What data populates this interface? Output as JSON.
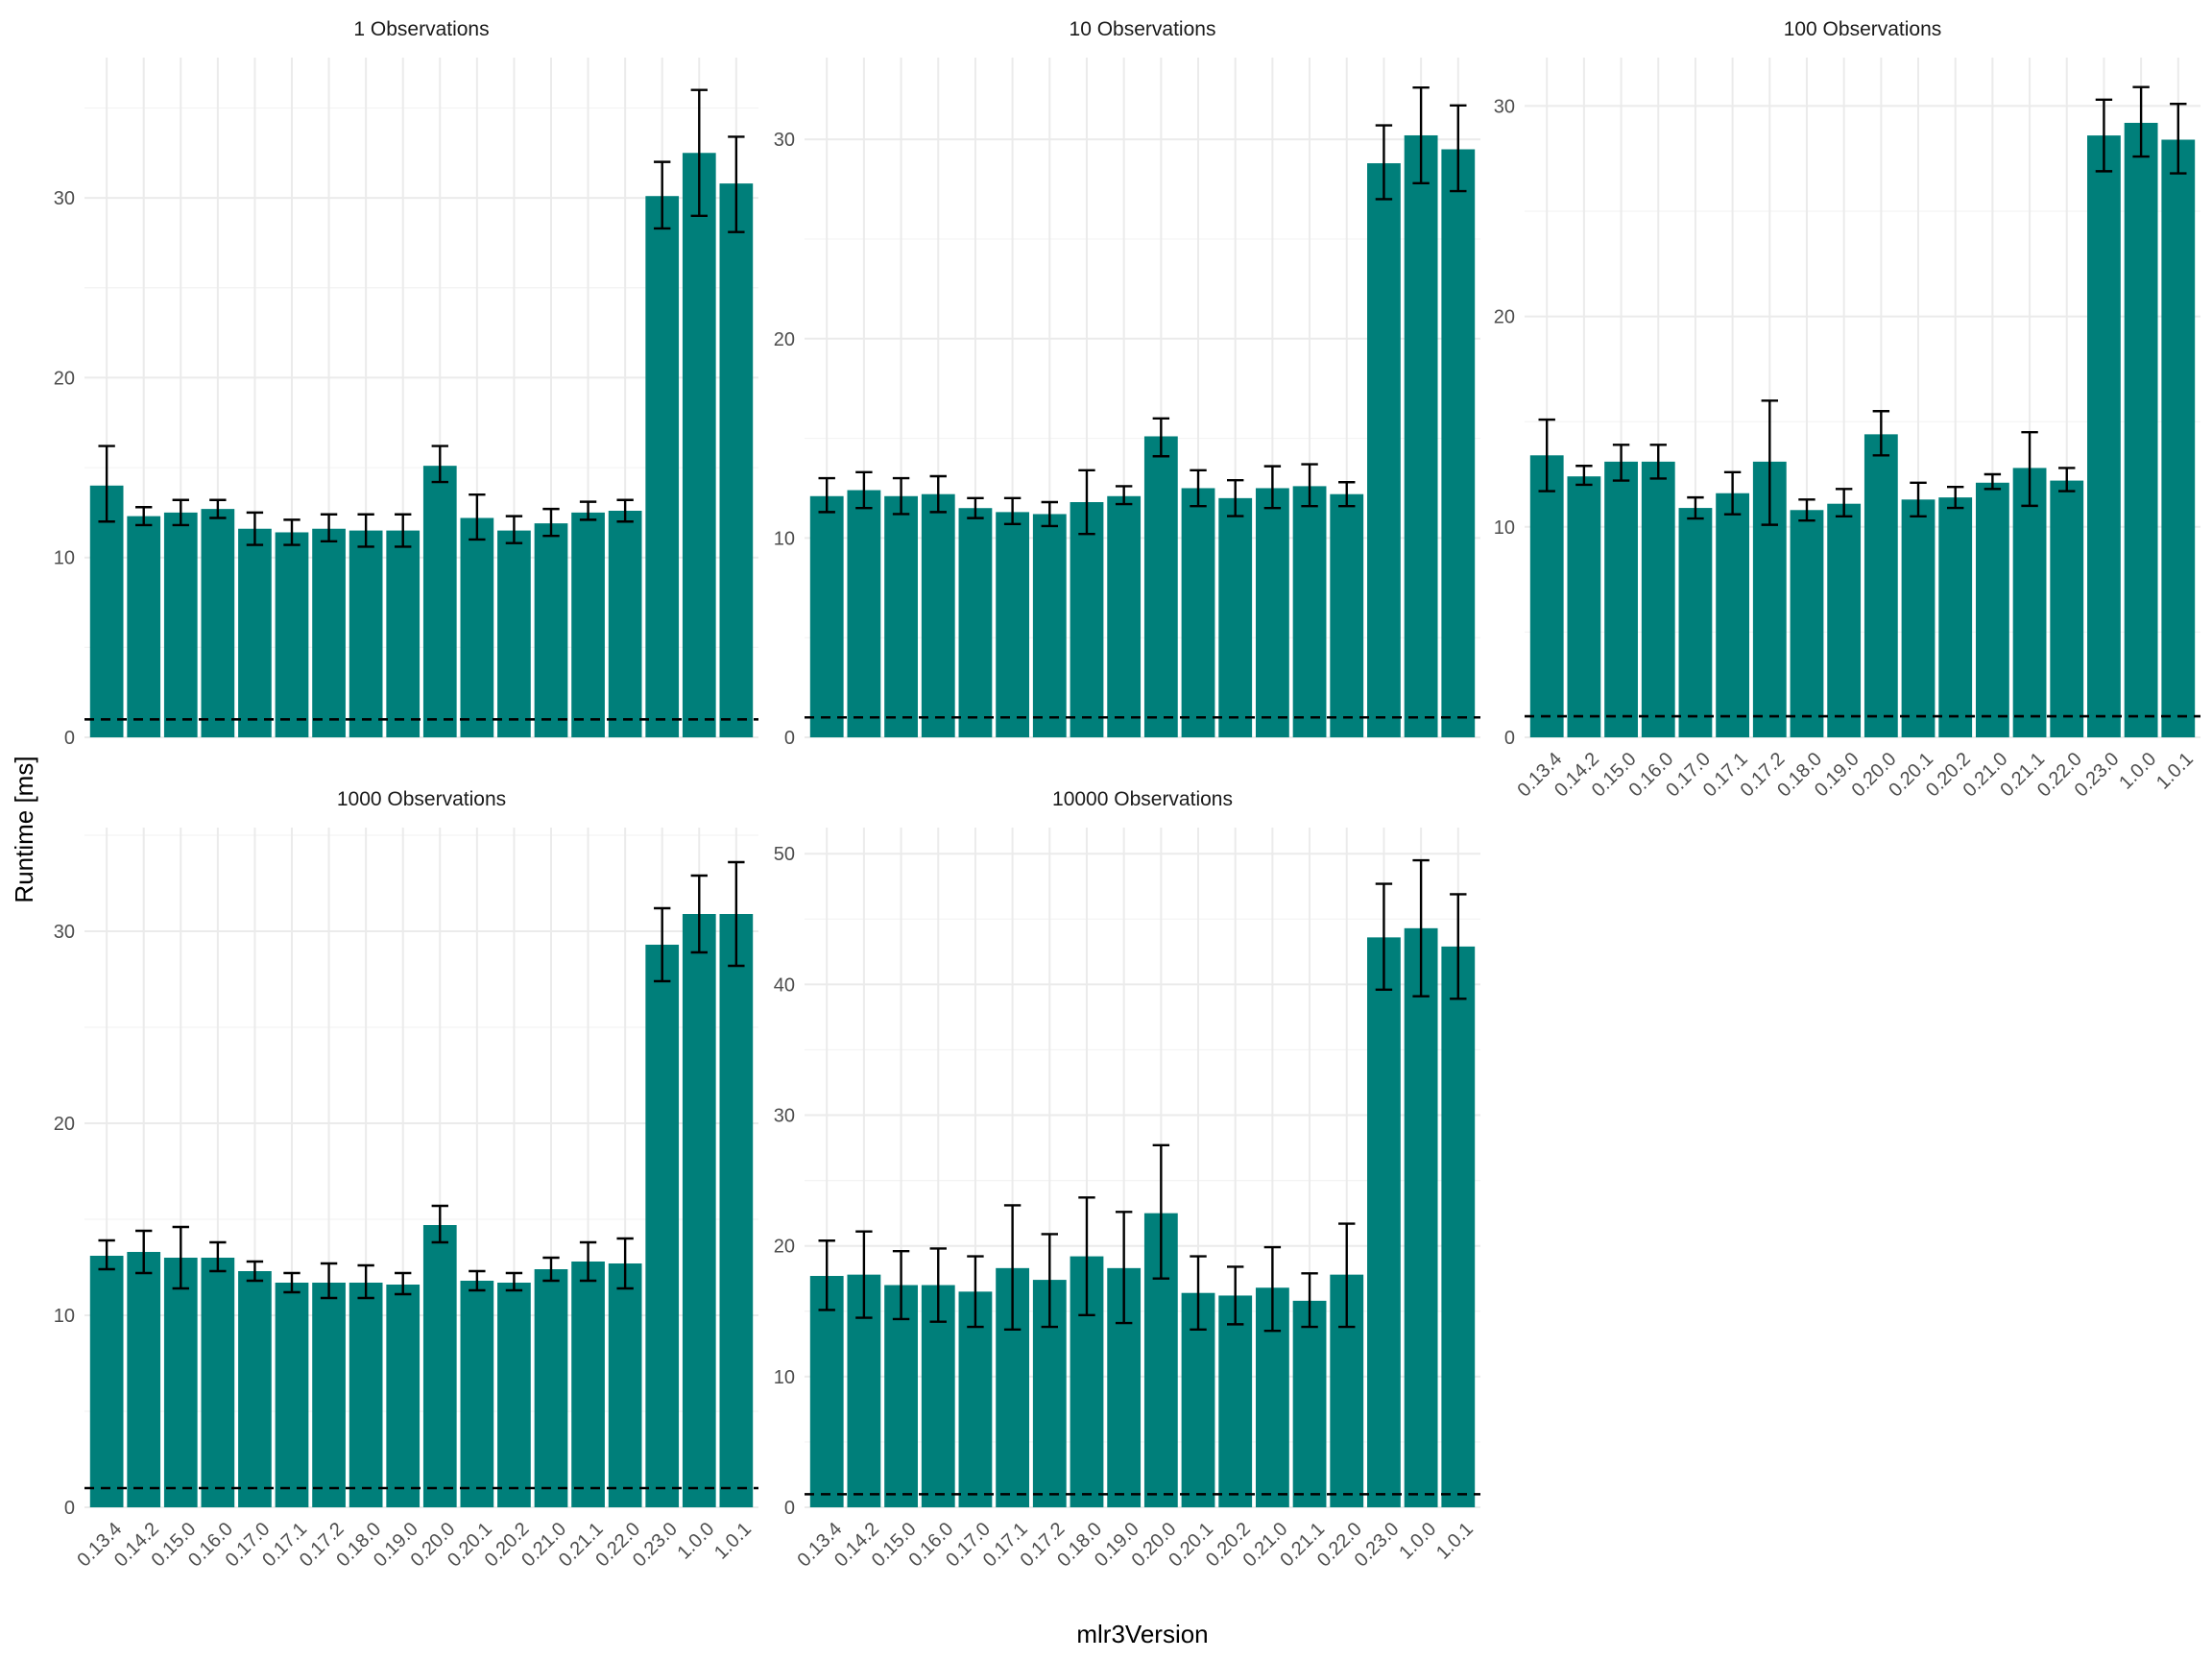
{
  "chart_data": {
    "type": "bar",
    "xlabel": "mlr3Version",
    "ylabel": "Runtime [ms]",
    "bar_color": "#007F7A",
    "errorbar_color": "#000000",
    "reference_line": {
      "y": 1,
      "style": "dashed",
      "color": "#000000"
    },
    "grid": true,
    "legend": "none",
    "categories": [
      "0.13.4",
      "0.14.2",
      "0.15.0",
      "0.16.0",
      "0.17.0",
      "0.17.1",
      "0.17.2",
      "0.18.0",
      "0.19.0",
      "0.20.0",
      "0.20.1",
      "0.20.2",
      "0.21.0",
      "0.21.1",
      "0.22.0",
      "0.23.0",
      "1.0.0",
      "1.0.1"
    ],
    "panels": [
      {
        "title": "1 Observations",
        "ylim": [
          0,
          37.8
        ],
        "yticks": [
          0,
          10,
          20,
          30
        ],
        "values": [
          14.0,
          12.3,
          12.5,
          12.7,
          11.6,
          11.4,
          11.6,
          11.5,
          11.5,
          15.1,
          12.2,
          11.5,
          11.9,
          12.5,
          12.6,
          30.1,
          32.5,
          30.8
        ],
        "error_low": [
          12.0,
          11.8,
          11.8,
          12.2,
          10.7,
          10.7,
          10.9,
          10.6,
          10.6,
          14.2,
          11.0,
          10.8,
          11.2,
          12.1,
          12.0,
          28.3,
          29.0,
          28.1
        ],
        "error_high": [
          16.2,
          12.8,
          13.2,
          13.2,
          12.5,
          12.1,
          12.4,
          12.4,
          12.4,
          16.2,
          13.5,
          12.3,
          12.7,
          13.1,
          13.2,
          32.0,
          36.0,
          33.4
        ]
      },
      {
        "title": "10 Observations",
        "ylim": [
          0,
          34.1
        ],
        "yticks": [
          0,
          10,
          20,
          30
        ],
        "values": [
          12.1,
          12.4,
          12.1,
          12.2,
          11.5,
          11.3,
          11.2,
          11.8,
          12.1,
          15.1,
          12.5,
          12.0,
          12.5,
          12.6,
          12.2,
          28.8,
          30.2,
          29.5
        ],
        "error_low": [
          11.3,
          11.5,
          11.2,
          11.3,
          11.0,
          10.7,
          10.6,
          10.2,
          11.7,
          14.1,
          11.6,
          11.1,
          11.5,
          11.6,
          11.6,
          27.0,
          27.8,
          27.4
        ],
        "error_high": [
          13.0,
          13.3,
          13.0,
          13.1,
          12.0,
          12.0,
          11.8,
          13.4,
          12.6,
          16.0,
          13.4,
          12.9,
          13.6,
          13.7,
          12.8,
          30.7,
          32.6,
          31.7
        ]
      },
      {
        "title": "100 Observations",
        "ylim": [
          0,
          32.3
        ],
        "yticks": [
          0,
          10,
          20,
          30
        ],
        "values": [
          13.4,
          12.4,
          13.1,
          13.1,
          10.9,
          11.6,
          13.1,
          10.8,
          11.1,
          14.4,
          11.3,
          11.4,
          12.1,
          12.8,
          12.2,
          28.6,
          29.2,
          28.4
        ],
        "error_low": [
          11.7,
          12.0,
          12.2,
          12.3,
          10.4,
          10.6,
          10.1,
          10.3,
          10.5,
          13.4,
          10.5,
          10.9,
          11.8,
          11.0,
          11.7,
          26.9,
          27.6,
          26.8
        ],
        "error_high": [
          15.1,
          12.9,
          13.9,
          13.9,
          11.4,
          12.6,
          16.0,
          11.3,
          11.8,
          15.5,
          12.1,
          11.9,
          12.5,
          14.5,
          12.8,
          30.3,
          30.9,
          30.1
        ]
      },
      {
        "title": "1000 Observations",
        "ylim": [
          0,
          35.4
        ],
        "yticks": [
          0,
          10,
          20,
          30
        ],
        "values": [
          13.1,
          13.3,
          13.0,
          13.0,
          12.3,
          11.7,
          11.7,
          11.7,
          11.6,
          14.7,
          11.8,
          11.7,
          12.4,
          12.8,
          12.7,
          29.3,
          30.9,
          30.9
        ],
        "error_low": [
          12.4,
          12.2,
          11.4,
          12.3,
          11.8,
          11.2,
          10.9,
          10.9,
          11.1,
          13.8,
          11.3,
          11.3,
          11.8,
          11.8,
          11.4,
          27.4,
          28.9,
          28.2
        ],
        "error_high": [
          13.9,
          14.4,
          14.6,
          13.8,
          12.8,
          12.2,
          12.7,
          12.6,
          12.2,
          15.7,
          12.3,
          12.2,
          13.0,
          13.8,
          14.0,
          31.2,
          32.9,
          33.6
        ]
      },
      {
        "title": "10000 Observations",
        "ylim": [
          0,
          52.0
        ],
        "yticks": [
          0,
          10,
          20,
          30,
          40,
          50
        ],
        "values": [
          17.7,
          17.8,
          17.0,
          17.0,
          16.5,
          18.3,
          17.4,
          19.2,
          18.3,
          22.5,
          16.4,
          16.2,
          16.8,
          15.8,
          17.8,
          43.6,
          44.3,
          42.9
        ],
        "error_low": [
          15.1,
          14.5,
          14.4,
          14.2,
          13.8,
          13.6,
          13.8,
          14.7,
          14.1,
          17.5,
          13.6,
          14.0,
          13.5,
          13.8,
          13.8,
          39.6,
          39.1,
          38.9
        ],
        "error_high": [
          20.4,
          21.1,
          19.6,
          19.8,
          19.2,
          23.1,
          20.9,
          23.7,
          22.6,
          27.7,
          19.2,
          18.4,
          19.9,
          17.9,
          21.7,
          47.7,
          49.5,
          46.9
        ]
      }
    ]
  }
}
